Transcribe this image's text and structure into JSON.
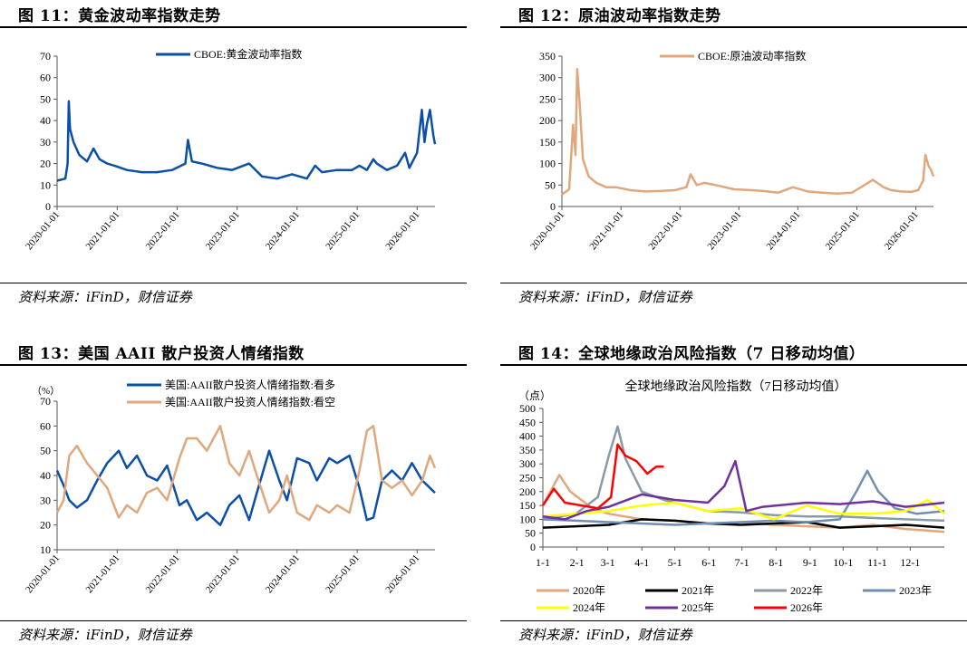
{
  "panels": [
    {
      "title": "图 11：黄金波动率指数走势",
      "source": "资料来源：iFinD，财信证券",
      "chart_data": {
        "type": "line",
        "legend": [
          "CBOE:黄金波动率指数"
        ],
        "legend_position": "top-center",
        "yticks": [
          "0",
          "10",
          "20",
          "30",
          "40",
          "50",
          "60",
          "70"
        ],
        "ylim": [
          0,
          70
        ],
        "xticks": [
          "2020-01-01",
          "2021-01-01",
          "2022-01-01",
          "2023-01-01",
          "2024-01-01",
          "2025-01-01",
          "2026-01-01"
        ],
        "xlim": [
          "2020-01-01",
          "2026-04-20"
        ],
        "colors": [
          "#0b4fa8"
        ],
        "series": [
          {
            "name": "CBOE:黄金波动率指数",
            "x": [
              "2020-01-01",
              "2020-02-20",
              "2020-03-05",
              "2020-03-12",
              "2020-03-20",
              "2020-04-10",
              "2020-05-15",
              "2020-07-01",
              "2020-08-10",
              "2020-09-15",
              "2020-11-01",
              "2020-12-15",
              "2021-03-01",
              "2021-06-01",
              "2021-09-01",
              "2021-12-01",
              "2022-02-20",
              "2022-03-08",
              "2022-04-01",
              "2022-06-01",
              "2022-09-01",
              "2022-12-01",
              "2023-03-15",
              "2023-06-01",
              "2023-09-01",
              "2023-12-01",
              "2024-03-01",
              "2024-04-20",
              "2024-06-01",
              "2024-09-01",
              "2024-12-01",
              "2025-01-15",
              "2025-03-01",
              "2025-04-10",
              "2025-05-01",
              "2025-07-01",
              "2025-09-01",
              "2025-10-20",
              "2025-11-15",
              "2026-01-01",
              "2026-01-30",
              "2026-02-15",
              "2026-03-01",
              "2026-03-20",
              "2026-04-10",
              "2026-04-20"
            ],
            "values": [
              12,
              13,
              20,
              49,
              36,
              30,
              24,
              21,
              27,
              22,
              20,
              19,
              17,
              16,
              16,
              17,
              20,
              31,
              21,
              20,
              18,
              17,
              20,
              14,
              13,
              15,
              13,
              19,
              16,
              17,
              17,
              19,
              17,
              22,
              20,
              17,
              19,
              25,
              18,
              25,
              45,
              30,
              38,
              45,
              33,
              29
            ]
          }
        ]
      }
    },
    {
      "title": "图 12：原油波动率指数走势",
      "source": "资料来源：iFinD，财信证券",
      "chart_data": {
        "type": "line",
        "legend": [
          "CBOE:原油波动率指数"
        ],
        "legend_position": "top-center",
        "yticks": [
          "0",
          "50",
          "100",
          "150",
          "200",
          "250",
          "300",
          "350"
        ],
        "ylim": [
          0,
          350
        ],
        "xticks": [
          "2020-01-01",
          "2021-01-01",
          "2022-01-01",
          "2023-01-01",
          "2024-01-01",
          "2025-01-01",
          "2026-01-01"
        ],
        "xlim": [
          "2020-01-01",
          "2026-04-20"
        ],
        "colors": [
          "#e0a77c"
        ],
        "series": [
          {
            "name": "CBOE:原油波动率指数",
            "x": [
              "2020-01-01",
              "2020-02-15",
              "2020-03-10",
              "2020-03-25",
              "2020-04-05",
              "2020-04-20",
              "2020-05-10",
              "2020-06-15",
              "2020-08-01",
              "2020-10-01",
              "2020-12-01",
              "2021-03-01",
              "2021-06-01",
              "2021-09-01",
              "2021-12-01",
              "2022-02-10",
              "2022-03-08",
              "2022-04-15",
              "2022-06-01",
              "2022-09-01",
              "2022-12-01",
              "2023-03-20",
              "2023-06-01",
              "2023-09-01",
              "2023-12-01",
              "2024-03-01",
              "2024-06-01",
              "2024-09-01",
              "2024-12-01",
              "2025-04-10",
              "2025-06-15",
              "2025-08-01",
              "2025-10-01",
              "2025-12-01",
              "2026-01-15",
              "2026-02-15",
              "2026-03-01",
              "2026-03-20",
              "2026-04-05",
              "2026-04-20"
            ],
            "values": [
              28,
              40,
              190,
              120,
              320,
              240,
              110,
              70,
              55,
              45,
              45,
              38,
              35,
              36,
              38,
              45,
              75,
              50,
              55,
              48,
              40,
              38,
              36,
              32,
              45,
              35,
              32,
              30,
              32,
              62,
              45,
              38,
              35,
              34,
              38,
              60,
              120,
              95,
              85,
              70
            ]
          }
        ]
      }
    },
    {
      "title": "图 13：美国 AAII 散户投资人情绪指数",
      "source": "资料来源：iFinD，财信证券",
      "chart_data": {
        "type": "line",
        "unit_label": "（%）",
        "legend": [
          "美国:AAII散户投资人情绪指数:看多",
          "美国:AAII散户投资人情绪指数:看空"
        ],
        "legend_position": "top-center",
        "yticks": [
          "10",
          "20",
          "30",
          "40",
          "50",
          "60",
          "70"
        ],
        "ylim": [
          10,
          70
        ],
        "xticks": [
          "2020-01-01",
          "2021-01-01",
          "2022-01-01",
          "2023-01-01",
          "2024-01-01",
          "2025-01-01",
          "2026-01-01"
        ],
        "xlim": [
          "2020-01-01",
          "2026-04-20"
        ],
        "colors": [
          "#0b4fa8",
          "#e0a77c"
        ],
        "series": [
          {
            "name": "美国:AAII散户投资人情绪指数:看多",
            "x": [
              "2020-01-01",
              "2020-02-10",
              "2020-03-15",
              "2020-05-01",
              "2020-07-01",
              "2020-09-01",
              "2020-11-01",
              "2021-01-10",
              "2021-03-01",
              "2021-05-01",
              "2021-07-01",
              "2021-09-01",
              "2021-11-01",
              "2022-01-15",
              "2022-03-01",
              "2022-05-01",
              "2022-07-01",
              "2022-09-20",
              "2022-11-15",
              "2023-01-15",
              "2023-03-15",
              "2023-05-01",
              "2023-07-15",
              "2023-09-15",
              "2023-11-01",
              "2024-01-01",
              "2024-03-15",
              "2024-05-01",
              "2024-07-15",
              "2024-09-01",
              "2024-11-15",
              "2025-01-15",
              "2025-03-01",
              "2025-04-10",
              "2025-06-01",
              "2025-08-01",
              "2025-10-01",
              "2025-12-01",
              "2026-02-01",
              "2026-03-20",
              "2026-04-20"
            ],
            "values": [
              42,
              36,
              30,
              27,
              30,
              38,
              45,
              50,
              43,
              48,
              40,
              38,
              44,
              28,
              30,
              22,
              25,
              20,
              28,
              32,
              22,
              33,
              50,
              38,
              30,
              47,
              45,
              38,
              47,
              45,
              48,
              35,
              22,
              23,
              38,
              42,
              38,
              45,
              38,
              35,
              33
            ]
          },
          {
            "name": "美国:AAII散户投资人情绪指数:看空",
            "x": [
              "2020-01-01",
              "2020-02-10",
              "2020-03-15",
              "2020-05-01",
              "2020-07-01",
              "2020-09-01",
              "2020-11-01",
              "2021-01-10",
              "2021-03-01",
              "2021-05-01",
              "2021-07-01",
              "2021-09-01",
              "2021-11-01",
              "2022-01-15",
              "2022-03-01",
              "2022-05-01",
              "2022-07-01",
              "2022-09-20",
              "2022-11-15",
              "2023-01-15",
              "2023-03-15",
              "2023-05-01",
              "2023-07-15",
              "2023-09-15",
              "2023-11-01",
              "2024-01-01",
              "2024-03-15",
              "2024-05-01",
              "2024-07-15",
              "2024-09-01",
              "2024-11-15",
              "2025-01-15",
              "2025-03-01",
              "2025-04-10",
              "2025-06-01",
              "2025-08-01",
              "2025-10-01",
              "2025-12-01",
              "2026-02-01",
              "2026-03-20",
              "2026-04-20"
            ],
            "values": [
              25,
              30,
              48,
              52,
              45,
              40,
              35,
              23,
              28,
              25,
              33,
              35,
              30,
              47,
              55,
              55,
              50,
              60,
              45,
              40,
              50,
              40,
              25,
              30,
              40,
              25,
              22,
              28,
              25,
              28,
              25,
              42,
              58,
              60,
              38,
              35,
              38,
              32,
              38,
              48,
              43
            ]
          }
        ]
      }
    },
    {
      "title": "图 14：全球地缘政治风险指数（7 日移动均值）",
      "source": "资料来源：iFinD，财信证券",
      "chart_data": {
        "type": "line",
        "title": "全球地缘政治风险指数（7日移动均值）",
        "unit_label": "（点）",
        "yticks": [
          "0",
          "50",
          "100",
          "150",
          "200",
          "250",
          "300",
          "350",
          "400",
          "450",
          "500"
        ],
        "ylim": [
          0,
          500
        ],
        "xticks": [
          "1-1",
          "2-1",
          "3-1",
          "4-1",
          "5-1",
          "6-1",
          "7-1",
          "8-1",
          "9-1",
          "10-1",
          "11-1",
          "12-1"
        ],
        "xlim": [
          0,
          365
        ],
        "legend_position": "bottom",
        "series": [
          {
            "name": "2020年",
            "color": "#e0a77c",
            "x": [
              0,
              15,
              25,
              45,
              60,
              90,
              120,
              150,
              180,
              210,
              240,
              270,
              300,
              330,
              365
            ],
            "values": [
              150,
              260,
              200,
              140,
              120,
              100,
              95,
              85,
              90,
              80,
              75,
              70,
              80,
              65,
              55
            ]
          },
          {
            "name": "2021年",
            "color": "#000000",
            "x": [
              0,
              30,
              60,
              90,
              120,
              150,
              180,
              210,
              240,
              270,
              300,
              330,
              365
            ],
            "values": [
              70,
              75,
              80,
              100,
              95,
              85,
              80,
              85,
              90,
              70,
              75,
              80,
              70
            ]
          },
          {
            "name": "2022年",
            "color": "#8a9aa6",
            "x": [
              0,
              30,
              50,
              60,
              68,
              75,
              90,
              110,
              130,
              150,
              180,
              210,
              240,
              270,
              300,
              330,
              365
            ],
            "values": [
              100,
              120,
              180,
              330,
              435,
              320,
              200,
              170,
              150,
              130,
              125,
              115,
              110,
              110,
              105,
              100,
              95
            ]
          },
          {
            "name": "2023年",
            "color": "#6f8fb2",
            "x": [
              0,
              30,
              60,
              90,
              120,
              150,
              180,
              210,
              240,
              270,
              285,
              295,
              305,
              320,
              340,
              365
            ],
            "values": [
              100,
              95,
              90,
              85,
              80,
              85,
              90,
              95,
              90,
              100,
              200,
              275,
              200,
              140,
              120,
              130
            ]
          },
          {
            "name": "2024年",
            "color": "#ffff00",
            "x": [
              0,
              30,
              60,
              90,
              120,
              150,
              180,
              210,
              240,
              270,
              300,
              330,
              350,
              365
            ],
            "values": [
              110,
              120,
              130,
              150,
              160,
              130,
              140,
              100,
              150,
              120,
              120,
              130,
              170,
              120
            ]
          },
          {
            "name": "2025年",
            "color": "#7030a0",
            "x": [
              0,
              20,
              40,
              60,
              90,
              120,
              150,
              165,
              175,
              185,
              200,
              240,
              270,
              300,
              330,
              365
            ],
            "values": [
              110,
              100,
              130,
              145,
              190,
              170,
              160,
              220,
              310,
              130,
              145,
              160,
              155,
              165,
              145,
              160
            ]
          },
          {
            "name": "2026年",
            "color": "#ff0000",
            "x": [
              0,
              10,
              20,
              35,
              50,
              62,
              68,
              75,
              85,
              95,
              103,
              110
            ],
            "values": [
              150,
              210,
              160,
              150,
              140,
              180,
              370,
              330,
              310,
              265,
              290,
              290
            ]
          }
        ]
      }
    }
  ]
}
